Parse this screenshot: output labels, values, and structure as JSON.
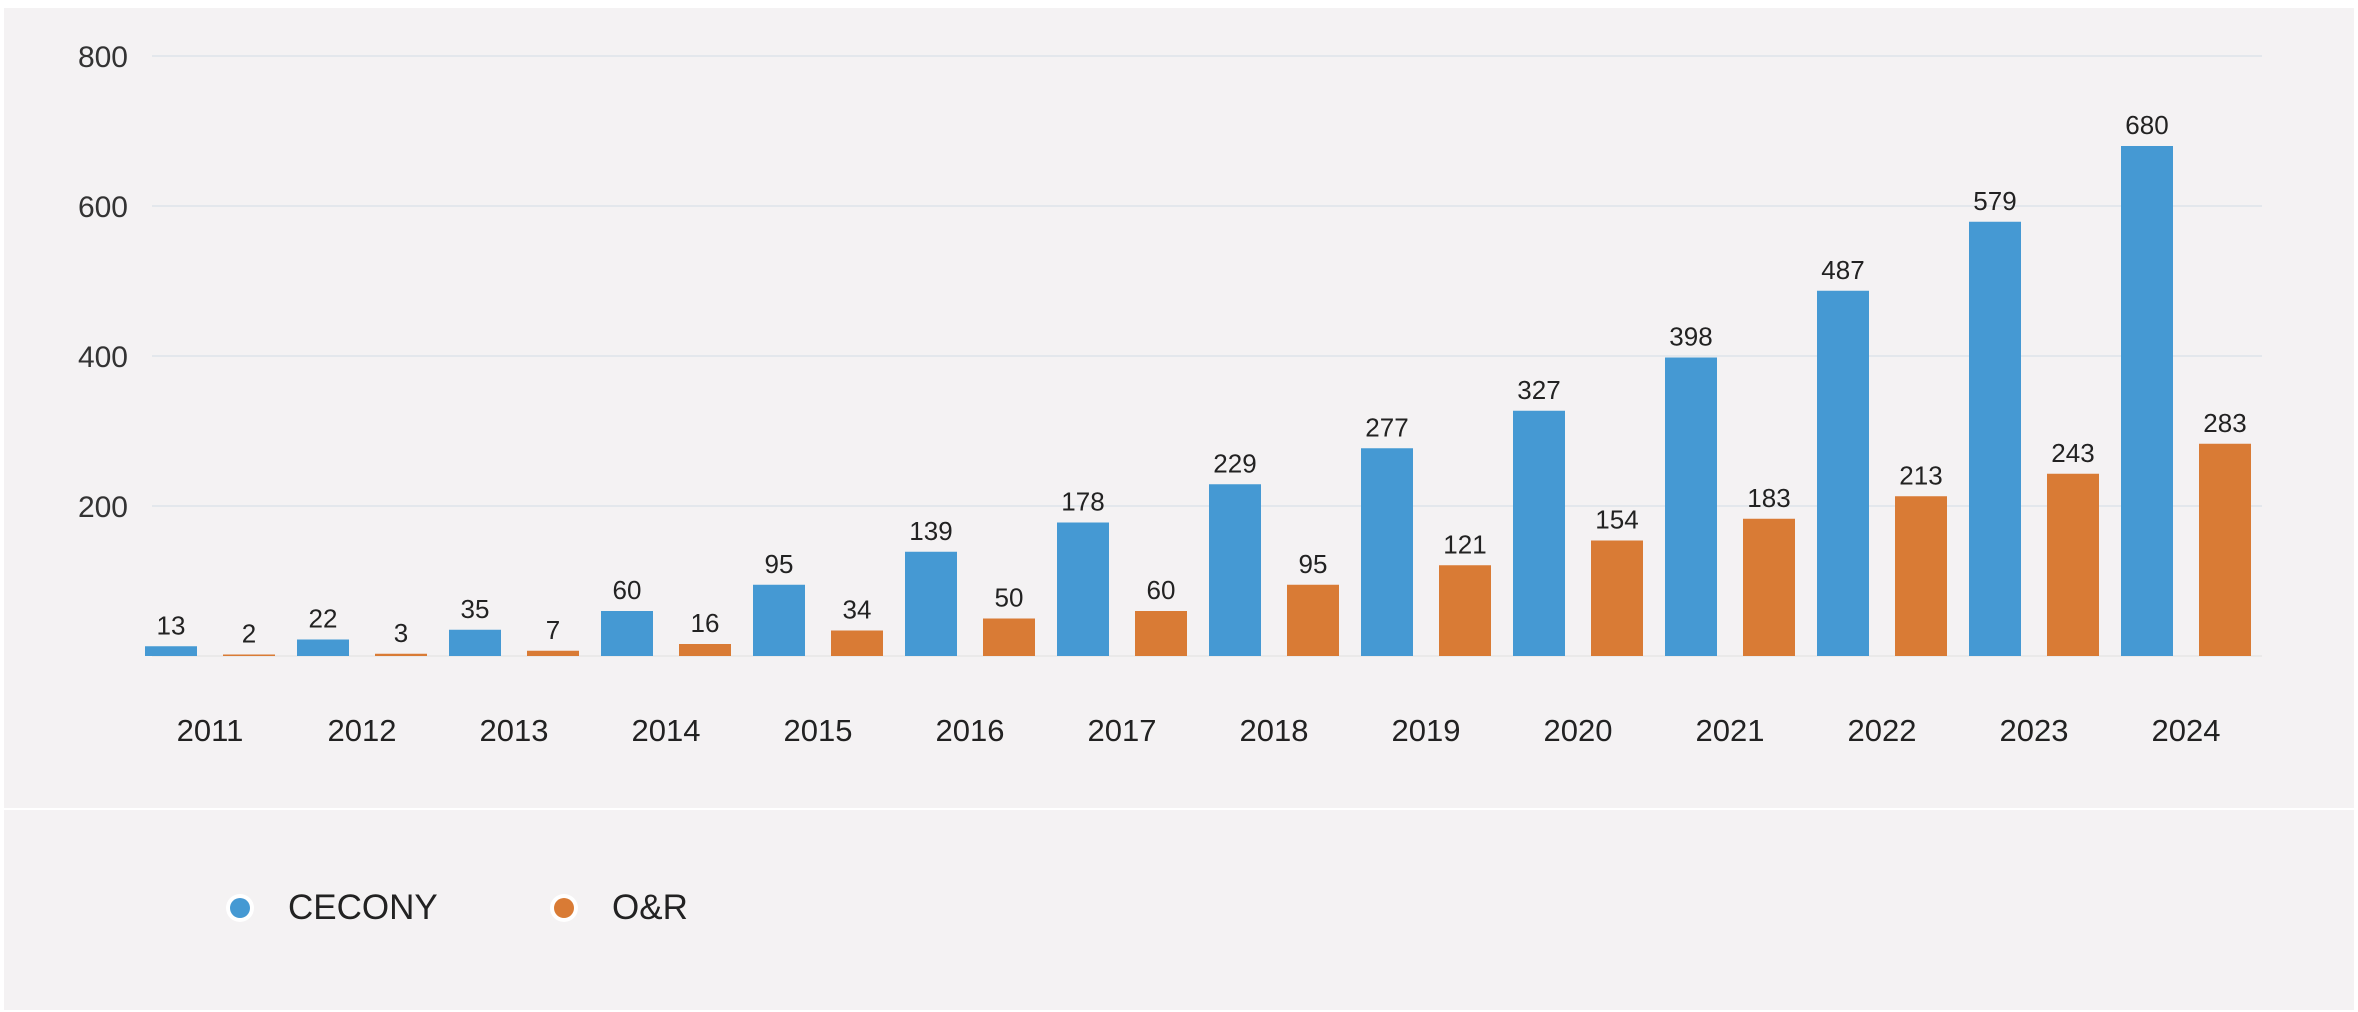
{
  "chart_data": {
    "type": "bar",
    "categories": [
      "2011",
      "2012",
      "2013",
      "2014",
      "2015",
      "2016",
      "2017",
      "2018",
      "2019",
      "2020",
      "2021",
      "2022",
      "2023",
      "2024"
    ],
    "series": [
      {
        "name": "CECONY",
        "color": "#4599d3",
        "values": [
          13,
          22,
          35,
          60,
          95,
          139,
          178,
          229,
          277,
          327,
          398,
          487,
          579,
          680
        ]
      },
      {
        "name": "O&R",
        "color": "#d97b35",
        "values": [
          2,
          3,
          7,
          16,
          34,
          50,
          60,
          95,
          121,
          154,
          183,
          213,
          243,
          283
        ]
      }
    ],
    "yticks": [
      200,
      400,
      600,
      800
    ],
    "ylim": [
      0,
      800
    ],
    "grid": true,
    "legend_position": "bottom-left",
    "data_labels": true
  }
}
